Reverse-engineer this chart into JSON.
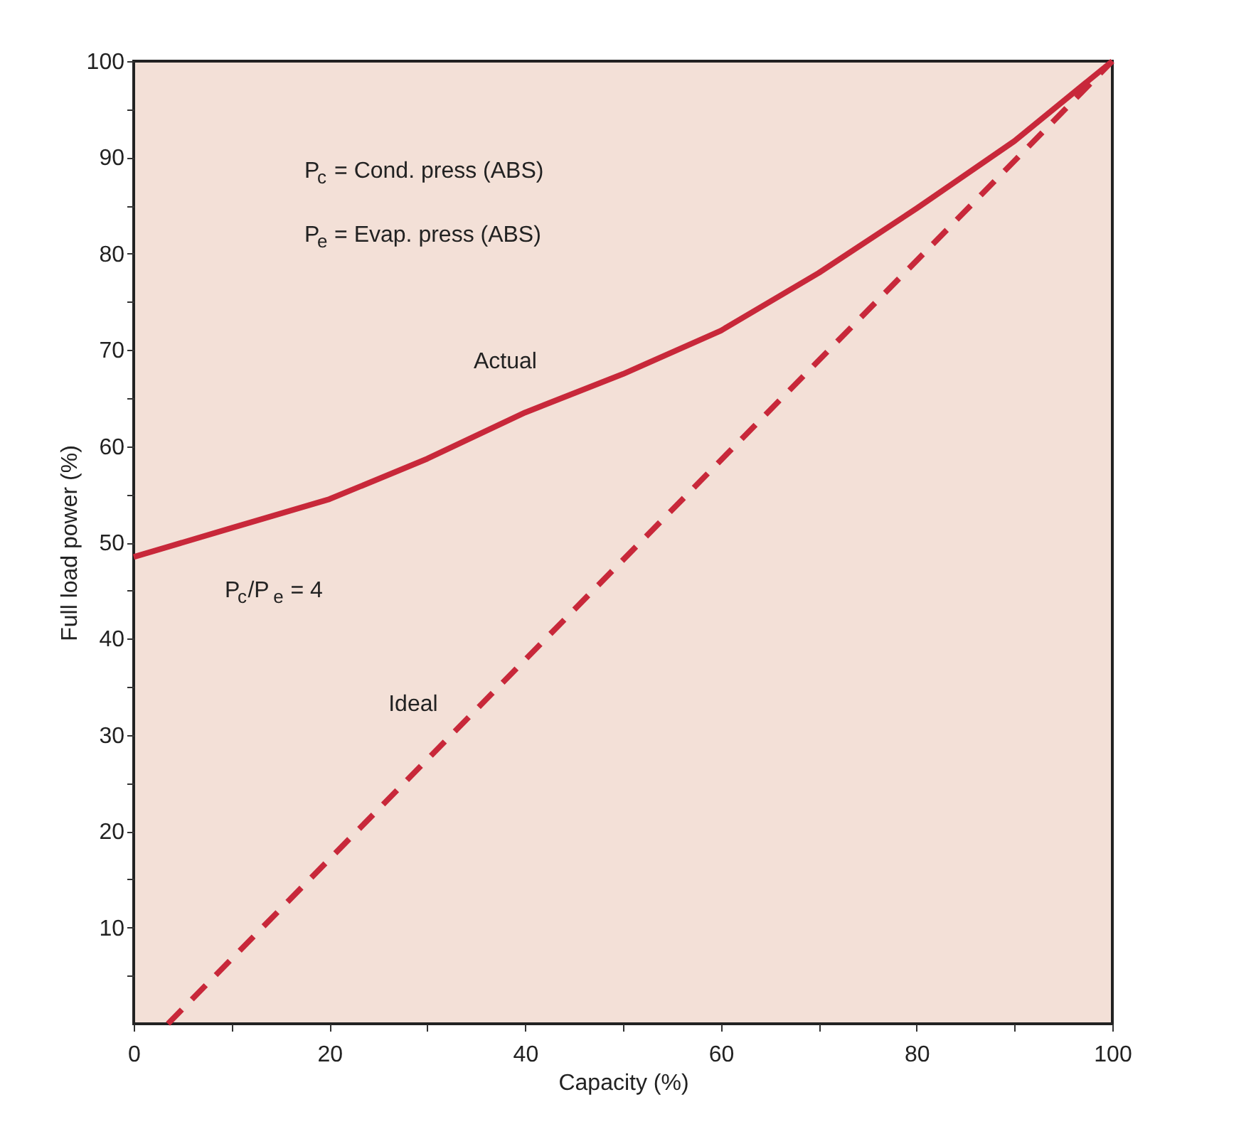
{
  "chart_data": {
    "type": "line",
    "xlabel": "Capacity (%)",
    "ylabel": "Full load power (%)",
    "x": [
      0,
      10,
      20,
      30,
      40,
      50,
      60,
      70,
      80,
      90,
      100
    ],
    "series": [
      {
        "name": "Actual",
        "color": "#c8283a",
        "line_style": "solid",
        "values": [
          48.5,
          51.5,
          54.5,
          58.7,
          63.5,
          67.5,
          72,
          78,
          84.7,
          91.7,
          100
        ]
      },
      {
        "name": "Ideal",
        "color": "#c8283a",
        "line_style": "dashed",
        "x": [
          3.5,
          100
        ],
        "values": [
          0,
          100
        ]
      }
    ],
    "xlim": [
      0,
      100
    ],
    "ylim": [
      0,
      100
    ],
    "xticks": [
      0,
      {
        "value": 10,
        "label": null
      },
      20,
      {
        "value": 30,
        "label": null
      },
      40,
      {
        "value": 50,
        "label": null
      },
      60,
      {
        "value": 70,
        "label": null
      },
      80,
      {
        "value": 90,
        "label": null
      },
      100
    ],
    "yticks": [
      {
        "value": 5,
        "label": null
      },
      10,
      {
        "value": 15,
        "label": null
      },
      20,
      {
        "value": 25,
        "label": null
      },
      30,
      {
        "value": 35,
        "label": null
      },
      40,
      {
        "value": 45,
        "label": null
      },
      50,
      {
        "value": 55,
        "label": null
      },
      60,
      {
        "value": 65,
        "label": null
      },
      70,
      {
        "value": 75,
        "label": null
      },
      80,
      {
        "value": 85,
        "label": null
      },
      90,
      {
        "value": 95,
        "label": null
      },
      100
    ],
    "annotations": [
      "P$_{c}$ = Cond. press (ABS)",
      "P$_{e}$ = Evap. press (ABS)",
      "P$_{c}$/P$_{e}$ = 4"
    ],
    "grid": false,
    "legend": false,
    "marker": "none"
  }
}
